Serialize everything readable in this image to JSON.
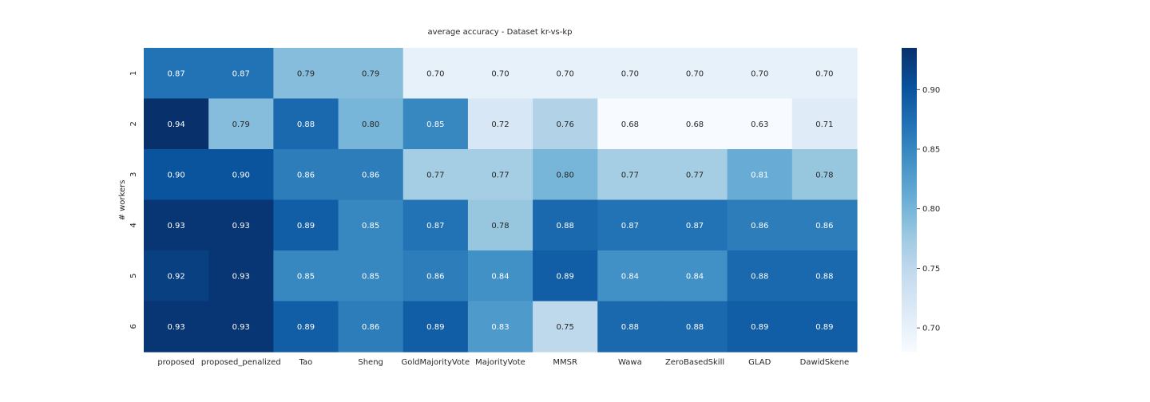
{
  "chart_data": {
    "type": "heatmap",
    "title": "average accuracy - Dataset kr-vs-kp",
    "xlabel": "",
    "ylabel": "# workers",
    "columns": [
      "proposed",
      "proposed_penalized",
      "Tao",
      "Sheng",
      "GoldMajorityVote",
      "MajorityVote",
      "MMSR",
      "Wawa",
      "ZeroBasedSkill",
      "GLAD",
      "DawidSkene"
    ],
    "rows": [
      "1",
      "2",
      "3",
      "4",
      "5",
      "6"
    ],
    "values": [
      [
        0.87,
        0.87,
        0.79,
        0.79,
        0.7,
        0.7,
        0.7,
        0.7,
        0.7,
        0.7,
        0.7
      ],
      [
        0.94,
        0.79,
        0.88,
        0.8,
        0.85,
        0.72,
        0.76,
        0.68,
        0.68,
        0.63,
        0.71
      ],
      [
        0.9,
        0.9,
        0.86,
        0.86,
        0.77,
        0.77,
        0.8,
        0.77,
        0.77,
        0.81,
        0.78
      ],
      [
        0.93,
        0.93,
        0.89,
        0.85,
        0.87,
        0.78,
        0.88,
        0.87,
        0.87,
        0.86,
        0.86
      ],
      [
        0.92,
        0.93,
        0.85,
        0.85,
        0.86,
        0.84,
        0.89,
        0.84,
        0.84,
        0.88,
        0.88
      ],
      [
        0.93,
        0.93,
        0.89,
        0.86,
        0.89,
        0.83,
        0.75,
        0.88,
        0.88,
        0.89,
        0.89
      ]
    ],
    "colorbar": {
      "colormap": "Blues",
      "vmin": 0.68,
      "vmax": 0.935,
      "ticks": [
        0.7,
        0.75,
        0.8,
        0.85,
        0.9
      ]
    }
  }
}
